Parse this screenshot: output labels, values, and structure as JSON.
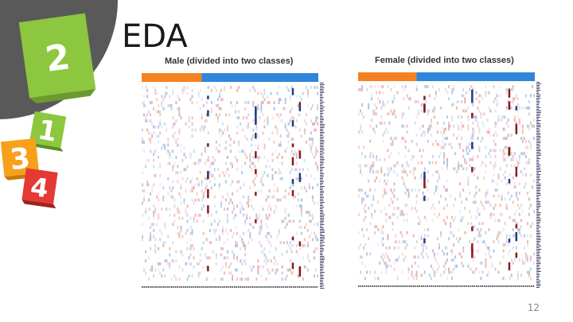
{
  "slide": {
    "title": "EDA",
    "page_number": "12",
    "section_badge": "2",
    "cubes": [
      "1",
      "3",
      "4"
    ],
    "colors": {
      "badge_green": "#8dc63f",
      "arc_gray": "#595959",
      "cube_green": "#8dc63f",
      "cube_orange": "#f7a11a",
      "cube_red": "#e53935",
      "class_orange": "#f58220",
      "class_blue": "#2f86d8"
    }
  },
  "panels": [
    {
      "title": "Male (divided into two classes)",
      "class_split": 0.34
    },
    {
      "title": "Female (divided into two classes)",
      "class_split": 0.33
    }
  ]
}
